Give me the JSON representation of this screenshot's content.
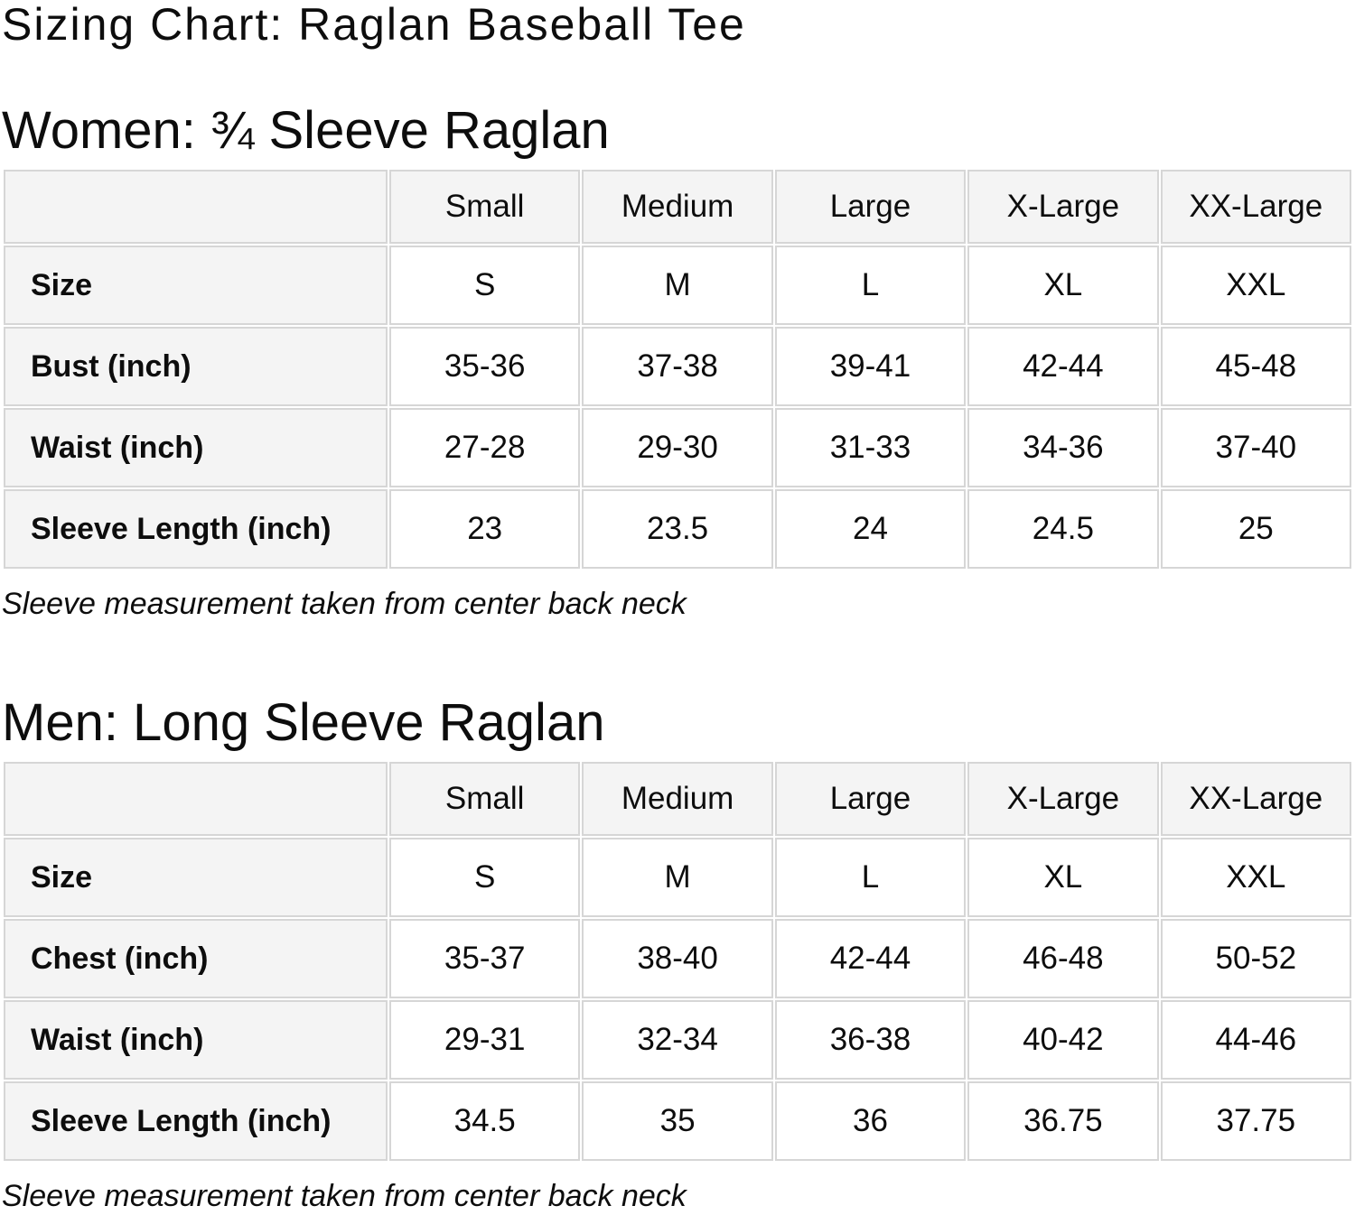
{
  "page": {
    "title": "Sizing Chart: Raglan Baseball Tee"
  },
  "colors": {
    "background": "#ffffff",
    "text": "#0d0d0d",
    "header_bg": "#f4f4f4",
    "border": "#d6d6d6"
  },
  "sections": [
    {
      "heading": "Women: ¾ Sleeve Raglan",
      "note": "Sleeve measurement taken from center back neck",
      "table": {
        "column_headers": [
          "",
          "Small",
          "Medium",
          "Large",
          "X-Large",
          "XX-Large"
        ],
        "rows": [
          {
            "label": "Size",
            "values": [
              "S",
              "M",
              "L",
              "XL",
              "XXL"
            ]
          },
          {
            "label": "Bust (inch)",
            "values": [
              "35-36",
              "37-38",
              "39-41",
              "42-44",
              "45-48"
            ]
          },
          {
            "label": "Waist (inch)",
            "values": [
              "27-28",
              "29-30",
              "31-33",
              "34-36",
              "37-40"
            ]
          },
          {
            "label": "Sleeve Length (inch)",
            "values": [
              "23",
              "23.5",
              "24",
              "24.5",
              "25"
            ]
          }
        ]
      }
    },
    {
      "heading": "Men: Long Sleeve Raglan",
      "note": "Sleeve measurement taken from center back neck",
      "table": {
        "column_headers": [
          "",
          "Small",
          "Medium",
          "Large",
          "X-Large",
          "XX-Large"
        ],
        "rows": [
          {
            "label": "Size",
            "values": [
              "S",
              "M",
              "L",
              "XL",
              "XXL"
            ]
          },
          {
            "label": "Chest (inch)",
            "values": [
              "35-37",
              "38-40",
              "42-44",
              "46-48",
              "50-52"
            ]
          },
          {
            "label": "Waist (inch)",
            "values": [
              "29-31",
              "32-34",
              "36-38",
              "40-42",
              "44-46"
            ]
          },
          {
            "label": "Sleeve Length (inch)",
            "values": [
              "34.5",
              "35",
              "36",
              "36.75",
              "37.75"
            ]
          }
        ]
      }
    }
  ]
}
